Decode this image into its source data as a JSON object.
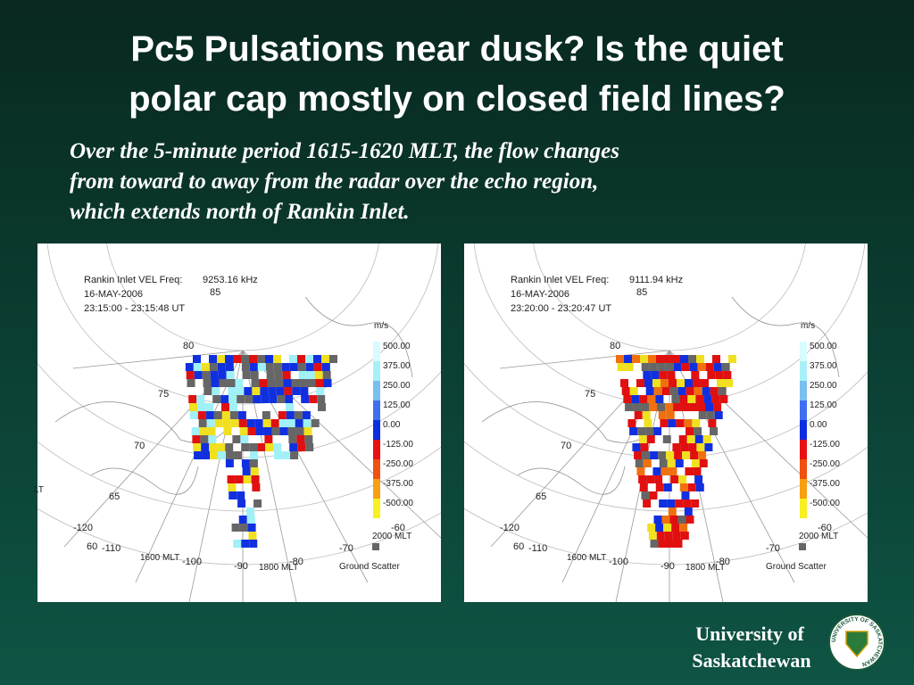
{
  "header": {
    "title_lines": [
      "Pc5 Pulsations near dusk? Is the quiet",
      "polar cap mostly on closed field lines?"
    ]
  },
  "body": {
    "lines": [
      "Over the 5-minute period 1615-1620 MLT, the flow changes",
      "from toward to away from the radar over the echo region,",
      "which extends north of Rankin Inlet."
    ]
  },
  "panels": [
    {
      "header_lines": [
        "Rankin Inlet VEL Freq:",
        "16-MAY-2006",
        "23:15:00 - 23:15:48 UT"
      ],
      "freq": "9253.16 kHz",
      "lat_labels": [
        "85",
        "80",
        "75",
        "70",
        "65",
        "60"
      ],
      "lon_labels": [
        "-120",
        "-110",
        "-100",
        "-90",
        "-80",
        "-70",
        "-60"
      ],
      "mlt_labels": [
        "1600 MLT",
        "1800 MLT",
        "2000 MLT"
      ],
      "edge_label": "LT",
      "unit": "m/s",
      "scale": [
        "500.00",
        "375.00",
        "250.00",
        "125.00",
        "0.00",
        "-125.00",
        "-250.00",
        "-375.00",
        "-500.00"
      ],
      "ground_scatter": "Ground Scatter"
    },
    {
      "header_lines": [
        "Rankin Inlet VEL Freq:",
        "16-MAY-2006",
        "23:20:00 - 23:20:47 UT"
      ],
      "freq": "9111.94 kHz",
      "lat_labels": [
        "85",
        "80",
        "75",
        "70",
        "65",
        "60"
      ],
      "lon_labels": [
        "-120",
        "-110",
        "-100",
        "-90",
        "-80",
        "-70",
        "-60"
      ],
      "mlt_labels": [
        "1600 MLT",
        "1800 MLT",
        "2000 MLT"
      ],
      "unit": "m/s",
      "scale": [
        "500.00",
        "375.00",
        "250.00",
        "125.00",
        "0.00",
        "-125.00",
        "-250.00",
        "-375.00",
        "-500.00"
      ],
      "ground_scatter": "Ground Scatter"
    }
  ],
  "footer": {
    "lines": [
      "University of",
      "Saskatchewan"
    ],
    "logo": "UNIVERSITY OF SASKATCHEWAN"
  }
}
